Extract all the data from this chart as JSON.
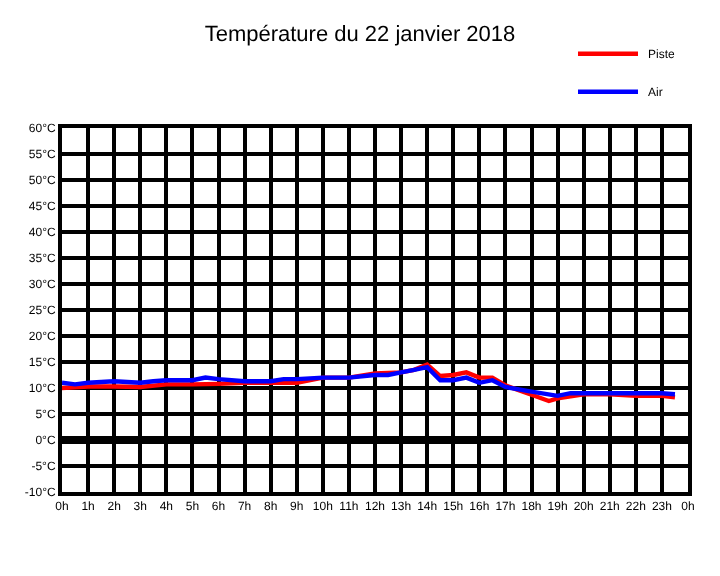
{
  "chart_data": {
    "type": "line",
    "title": "Température du 22 janvier 2018",
    "xlim": [
      "2018-01-22T00:00",
      "2018-01-23T00:00"
    ],
    "xticks": [
      {
        "value": "2018-01-22T00:00",
        "label": "0h"
      },
      {
        "value": "2018-01-22T01:00",
        "label": "1h"
      },
      {
        "value": "2018-01-22T02:00",
        "label": "2h"
      },
      {
        "value": "2018-01-22T03:00",
        "label": "3h"
      },
      {
        "value": "2018-01-22T04:00",
        "label": "4h"
      },
      {
        "value": "2018-01-22T05:00",
        "label": "5h"
      },
      {
        "value": "2018-01-22T06:00",
        "label": "6h"
      },
      {
        "value": "2018-01-22T07:00",
        "label": "7h"
      },
      {
        "value": "2018-01-22T08:00",
        "label": "8h"
      },
      {
        "value": "2018-01-22T09:00",
        "label": "9h"
      },
      {
        "value": "2018-01-22T10:00",
        "label": "10h"
      },
      {
        "value": "2018-01-22T11:00",
        "label": "11h"
      },
      {
        "value": "2018-01-22T12:00",
        "label": "12h"
      },
      {
        "value": "2018-01-22T13:00",
        "label": "13h"
      },
      {
        "value": "2018-01-22T14:00",
        "label": "14h"
      },
      {
        "value": "2018-01-22T15:00",
        "label": "15h"
      },
      {
        "value": "2018-01-22T16:00",
        "label": "16h"
      },
      {
        "value": "2018-01-22T17:00",
        "label": "17h"
      },
      {
        "value": "2018-01-22T18:00",
        "label": "18h"
      },
      {
        "value": "2018-01-22T19:00",
        "label": "19h"
      },
      {
        "value": "2018-01-22T20:00",
        "label": "20h"
      },
      {
        "value": "2018-01-22T21:00",
        "label": "21h"
      },
      {
        "value": "2018-01-22T22:00",
        "label": "22h"
      },
      {
        "value": "2018-01-22T23:00",
        "label": "23h"
      },
      {
        "value": "2018-01-23T00:00",
        "label": "0h"
      }
    ],
    "ylim": [
      -10,
      60
    ],
    "yticks": [
      {
        "value": -10,
        "label": "-10°C"
      },
      {
        "value": -5,
        "label": "-5°C"
      },
      {
        "value": 0,
        "label": "0°C"
      },
      {
        "value": 5,
        "label": "5°C"
      },
      {
        "value": 10,
        "label": "10°C"
      },
      {
        "value": 15,
        "label": "15°C"
      },
      {
        "value": 20,
        "label": "20°C"
      },
      {
        "value": 25,
        "label": "25°C"
      },
      {
        "value": 30,
        "label": "30°C"
      },
      {
        "value": 35,
        "label": "35°C"
      },
      {
        "value": 40,
        "label": "40°C"
      },
      {
        "value": 45,
        "label": "45°C"
      },
      {
        "value": 50,
        "label": "50°C"
      },
      {
        "value": 55,
        "label": "55°C"
      },
      {
        "value": 60,
        "label": "60°C"
      }
    ],
    "grid": true,
    "legend": "top right",
    "line_style": "solid",
    "ref_lines": [
      {
        "axis": "y",
        "value": 0,
        "color": "#000000"
      }
    ],
    "series": [
      {
        "name": "Piste",
        "color": "#ff0000",
        "x": [
          "2018-01-22T00:00",
          "2018-01-22T01:00",
          "2018-01-22T02:00",
          "2018-01-22T03:00",
          "2018-01-22T04:00",
          "2018-01-22T05:00",
          "2018-01-22T06:00",
          "2018-01-22T07:00",
          "2018-01-22T08:00",
          "2018-01-22T09:00",
          "2018-01-22T10:00",
          "2018-01-22T11:00",
          "2018-01-22T12:00",
          "2018-01-22T13:00",
          "2018-01-22T13:30",
          "2018-01-22T14:00",
          "2018-01-22T14:30",
          "2018-01-22T15:00",
          "2018-01-22T15:30",
          "2018-01-22T16:00",
          "2018-01-22T16:30",
          "2018-01-22T17:00",
          "2018-01-22T18:00",
          "2018-01-22T18:40",
          "2018-01-22T19:00",
          "2018-01-22T20:00",
          "2018-01-22T21:00",
          "2018-01-22T22:00",
          "2018-01-22T23:00",
          "2018-01-22T23:30"
        ],
        "values": [
          10,
          10.3,
          10.3,
          10.2,
          10.7,
          10.7,
          10.8,
          11,
          11,
          11,
          12,
          12,
          12.8,
          13,
          13.5,
          14.5,
          12.3,
          12.5,
          13,
          12,
          12,
          10.5,
          8.7,
          7.5,
          8,
          8.8,
          8.8,
          8.5,
          8.5,
          8.2
        ]
      },
      {
        "name": "Air",
        "color": "#0000ff",
        "x": [
          "2018-01-22T00:00",
          "2018-01-22T00:30",
          "2018-01-22T01:00",
          "2018-01-22T02:00",
          "2018-01-22T03:00",
          "2018-01-22T03:30",
          "2018-01-22T04:00",
          "2018-01-22T05:00",
          "2018-01-22T05:30",
          "2018-01-22T06:00",
          "2018-01-22T07:00",
          "2018-01-22T08:00",
          "2018-01-22T08:30",
          "2018-01-22T09:00",
          "2018-01-22T10:00",
          "2018-01-22T11:00",
          "2018-01-22T12:00",
          "2018-01-22T12:30",
          "2018-01-22T13:00",
          "2018-01-22T13:30",
          "2018-01-22T14:00",
          "2018-01-22T14:30",
          "2018-01-22T15:00",
          "2018-01-22T15:30",
          "2018-01-22T16:00",
          "2018-01-22T16:30",
          "2018-01-22T17:00",
          "2018-01-22T18:00",
          "2018-01-22T19:00",
          "2018-01-22T19:30",
          "2018-01-22T20:00",
          "2018-01-22T22:00",
          "2018-01-22T23:00",
          "2018-01-22T23:30"
        ],
        "values": [
          11,
          10.7,
          11,
          11.3,
          11,
          11.3,
          11.5,
          11.5,
          12,
          11.7,
          11.3,
          11.3,
          11.7,
          11.7,
          12,
          12,
          12.5,
          12.5,
          13,
          13.5,
          14,
          11.5,
          11.5,
          12,
          11,
          11.5,
          10.2,
          9.3,
          8.5,
          9,
          9,
          9,
          9,
          8.8
        ]
      }
    ]
  }
}
